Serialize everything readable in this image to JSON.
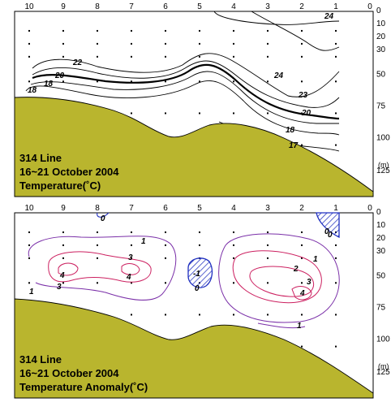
{
  "chart_data": [
    {
      "type": "contour",
      "x_ticks": [
        "10",
        "9",
        "8",
        "7",
        "6",
        "5",
        "4",
        "3",
        "2",
        "1",
        "0"
      ],
      "y_ticks": [
        "0",
        "10",
        "20",
        "30",
        "50",
        "75",
        "100",
        "125"
      ],
      "y_unit": "(m)",
      "annotation": [
        "314 Line",
        "16~21 October 2004",
        "Temperature(˚C)"
      ],
      "contour_labels": [
        "24",
        "22",
        "20",
        "18",
        "18",
        "24",
        "23",
        "20",
        "18",
        "17"
      ]
    },
    {
      "type": "contour",
      "x_ticks": [
        "10",
        "9",
        "8",
        "7",
        "6",
        "5",
        "4",
        "3",
        "2",
        "1",
        "0"
      ],
      "y_ticks": [
        "0",
        "10",
        "20",
        "30",
        "50",
        "75",
        "100",
        "125"
      ],
      "y_unit": "(m)",
      "annotation": [
        "314 Line",
        "16~21 October 2004",
        "Temperature Anomaly(˚C)"
      ],
      "contour_labels": [
        "0",
        "0",
        "1",
        "1",
        "3",
        "4",
        "3",
        "4",
        "1",
        "0",
        "-1",
        "2",
        "3",
        "4",
        "1",
        "0"
      ]
    }
  ],
  "colors": {
    "seabed": "#b9b52e",
    "positive_anomaly": "#cc2060",
    "small_anomaly": "#7a2fa8",
    "negative_anomaly": "#2030c0",
    "contour": "#000000"
  }
}
